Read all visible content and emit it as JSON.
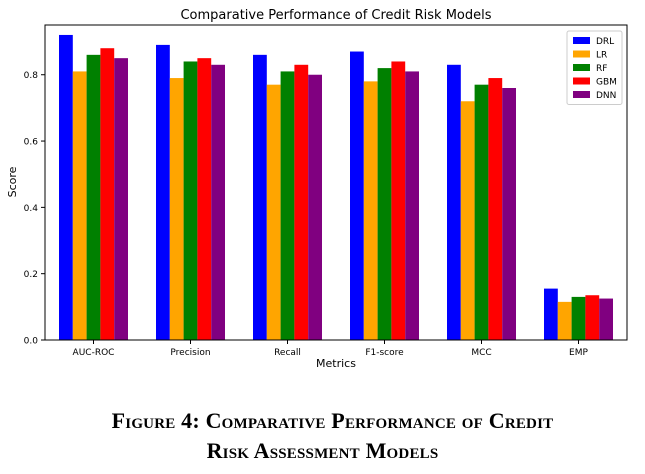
{
  "chart_data": {
    "type": "bar",
    "title": "Comparative Performance of Credit Risk Models",
    "xlabel": "Metrics",
    "ylabel": "Score",
    "categories": [
      "AUC-ROC",
      "Precision",
      "Recall",
      "F1-score",
      "MCC",
      "EMP"
    ],
    "ylim": [
      0,
      0.95
    ],
    "yticks": [
      "0.0",
      "0.2",
      "0.4",
      "0.6",
      "0.8"
    ],
    "legend_position": "top-right",
    "series": [
      {
        "name": "DRL",
        "color": "#0000ff",
        "values": [
          0.92,
          0.89,
          0.86,
          0.87,
          0.83,
          0.155
        ]
      },
      {
        "name": "LR",
        "color": "#ffa500",
        "values": [
          0.81,
          0.79,
          0.77,
          0.78,
          0.72,
          0.115
        ]
      },
      {
        "name": "RF",
        "color": "#008000",
        "values": [
          0.86,
          0.84,
          0.81,
          0.82,
          0.77,
          0.13
        ]
      },
      {
        "name": "GBM",
        "color": "#ff0000",
        "values": [
          0.88,
          0.85,
          0.83,
          0.84,
          0.79,
          0.135
        ]
      },
      {
        "name": "DNN",
        "color": "#800080",
        "values": [
          0.85,
          0.83,
          0.8,
          0.81,
          0.76,
          0.125
        ]
      }
    ]
  },
  "caption": {
    "line1": "Figure 4: Comparative Performance of Credit",
    "line2": "Risk Assessment Models"
  }
}
